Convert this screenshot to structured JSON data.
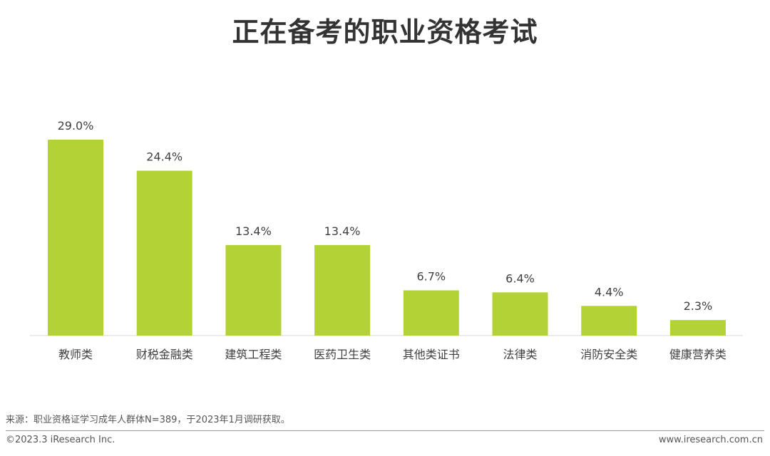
{
  "page": {
    "title": "正在备考的职业资格考试",
    "source_note": "来源：职业资格证学习成年人群体N=389，于2023年1月调研获取。",
    "copyright": "©2023.3 iResearch Inc.",
    "website": "www.iresearch.com.cn"
  },
  "colors": {
    "bar": "#b2d235",
    "axis": "#d9d9d9",
    "text": "#404040"
  },
  "chart_data": {
    "type": "bar",
    "title": "正在备考的职业资格考试",
    "xlabel": "",
    "ylabel": "",
    "categories": [
      "教师类",
      "财税金融类",
      "建筑工程类",
      "医药卫生类",
      "其他类证书",
      "法律类",
      "消防安全类",
      "健康营养类"
    ],
    "values": [
      29.0,
      24.4,
      13.4,
      13.4,
      6.7,
      6.4,
      4.4,
      2.3
    ],
    "value_labels": [
      "29.0%",
      "24.4%",
      "13.4%",
      "13.4%",
      "6.7%",
      "6.4%",
      "4.4%",
      "2.3%"
    ],
    "unit": "%",
    "ylim": [
      0,
      29.0
    ],
    "grid": false,
    "legend": "none"
  }
}
